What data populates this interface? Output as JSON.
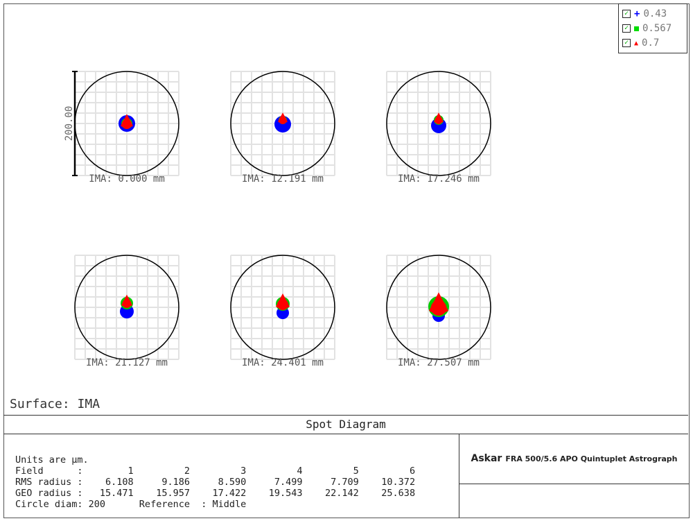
{
  "chart_data": {
    "type": "scatter",
    "title": "Spot Diagram",
    "surface_label": "Surface: IMA",
    "scale_bar_label": "200.00",
    "legend_placement": "top-right",
    "legend": [
      {
        "label": "0.43",
        "marker": "plus",
        "color": "#0000ff",
        "checked": true
      },
      {
        "label": "0.567",
        "marker": "square",
        "color": "#00dd00",
        "checked": true
      },
      {
        "label": "0.7",
        "marker": "triangle",
        "color": "#ff0000",
        "checked": true
      }
    ],
    "fields": [
      {
        "label": "IMA: 0.000 mm"
      },
      {
        "label": "IMA: 12.191 mm"
      },
      {
        "label": "IMA: 17.246 mm"
      },
      {
        "label": "IMA: 21.127 mm"
      },
      {
        "label": "IMA: 24.401 mm"
      },
      {
        "label": "IMA: 27.507 mm"
      }
    ]
  },
  "info": {
    "units": "Units are µm.",
    "field_row": "Field      :        1         2         3         4         5         6",
    "rms_row": "RMS radius :    6.108     9.186     8.590     7.499     7.709    10.372",
    "geo_row": "GEO radius :   15.471    15.957    17.422    19.543    22.142    25.638",
    "circle_row": "Circle diam: 200      Reference  : Middle"
  },
  "brand": {
    "logo": "Askar",
    "subtitle": "FRA 500/5.6 APO Quintuplet Astrograph"
  }
}
